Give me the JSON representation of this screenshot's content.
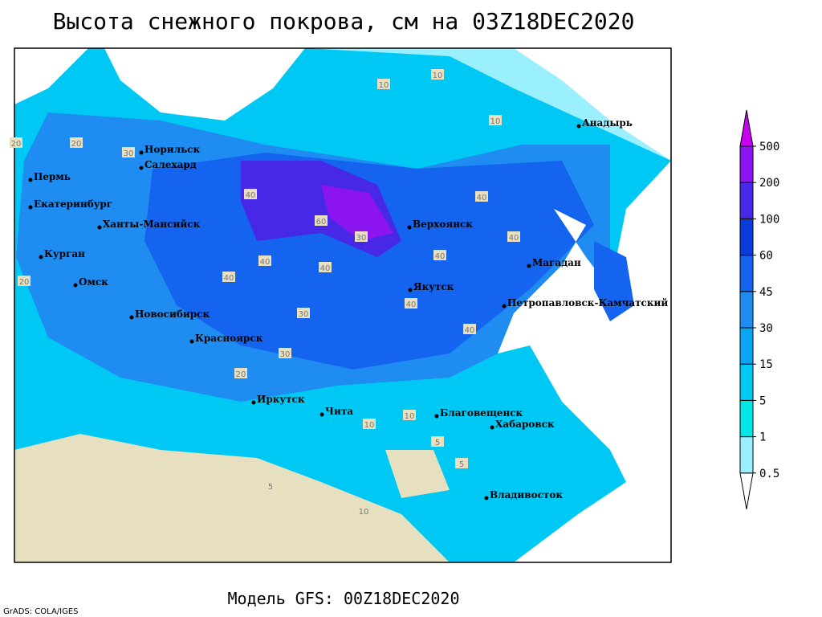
{
  "title": "Высота снежного покрова, см на 03Z18DEC2020",
  "legend": {
    "levels": [
      0.5,
      1,
      5,
      15,
      30,
      45,
      60,
      100,
      200,
      500
    ],
    "colors": [
      "#ffffff",
      "#9af0ff",
      "#00e6e6",
      "#00c8f5",
      "#0aa5f5",
      "#1e8cf0",
      "#1464f0",
      "#0a3cdc",
      "#4628e6",
      "#8c14f0",
      "#c800f0"
    ]
  },
  "cities": [
    "Норильск",
    "Салехард",
    "Пермь",
    "Екатеринбург",
    "Ханты-Мансийск",
    "Курган",
    "Омск",
    "Новосибирск",
    "Красноярск",
    "Иркутск",
    "Чита",
    "Верхоянск",
    "Якутск",
    "Магадан",
    "Анадырь",
    "Петропавловск-Камчатский",
    "Благовещенск",
    "Хабаровск",
    "Владивосток"
  ],
  "contour_labels": [
    20,
    20,
    30,
    40,
    60,
    30,
    40,
    40,
    40,
    40,
    40,
    40,
    40,
    30,
    40,
    30,
    20,
    10,
    5,
    10,
    5,
    10,
    5,
    20,
    10,
    10,
    10
  ],
  "footer": "Модель GFS: 00Z18DEC2020",
  "credit": "GrADS: COLA/IGES"
}
